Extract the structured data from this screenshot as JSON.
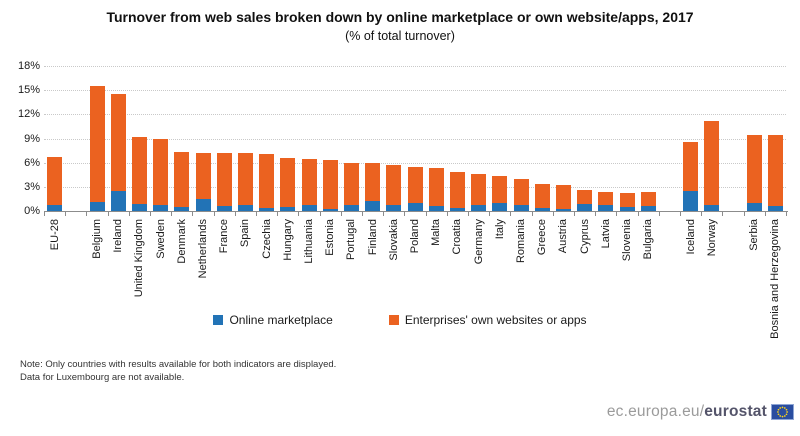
{
  "chart_data": {
    "type": "bar",
    "stacked": true,
    "title": "Turnover from web sales broken down by online marketplace or own website/apps, 2017",
    "subtitle": "(% of total turnover)",
    "ylabel": "",
    "xlabel": "",
    "ylim": [
      0,
      18
    ],
    "ytick_step": 3,
    "ytick_suffix": "%",
    "grid": "horizontal-dotted",
    "legend_position": "bottom-center",
    "series": [
      {
        "key": "marketplace",
        "name": "Online marketplace",
        "color": "#2273B6"
      },
      {
        "key": "own_websites",
        "name": "Enterprises' own websites or apps",
        "color": "#EB6220"
      }
    ],
    "groups": [
      {
        "countries": [
          {
            "name": "EU-28",
            "marketplace": 0.7,
            "own_websites": 6.0
          }
        ]
      },
      {
        "countries": [
          {
            "name": "Belgium",
            "marketplace": 1.1,
            "own_websites": 14.4
          },
          {
            "name": "Ireland",
            "marketplace": 2.5,
            "own_websites": 12.0
          },
          {
            "name": "United Kingdom",
            "marketplace": 0.9,
            "own_websites": 8.3
          },
          {
            "name": "Sweden",
            "marketplace": 0.7,
            "own_websites": 8.2
          },
          {
            "name": "Denmark",
            "marketplace": 0.5,
            "own_websites": 6.8
          },
          {
            "name": "Netherlands",
            "marketplace": 1.5,
            "own_websites": 5.7
          },
          {
            "name": "France",
            "marketplace": 0.6,
            "own_websites": 6.6
          },
          {
            "name": "Spain",
            "marketplace": 0.7,
            "own_websites": 6.5
          },
          {
            "name": "Czechia",
            "marketplace": 0.4,
            "own_websites": 6.7
          },
          {
            "name": "Hungary",
            "marketplace": 0.5,
            "own_websites": 6.1
          },
          {
            "name": "Lithuania",
            "marketplace": 0.8,
            "own_websites": 5.7
          },
          {
            "name": "Estonia",
            "marketplace": 0.3,
            "own_websites": 6.0
          },
          {
            "name": "Portugal",
            "marketplace": 0.7,
            "own_websites": 5.3
          },
          {
            "name": "Finland",
            "marketplace": 1.2,
            "own_websites": 4.7
          },
          {
            "name": "Slovakia",
            "marketplace": 0.7,
            "own_websites": 5.0
          },
          {
            "name": "Poland",
            "marketplace": 1.0,
            "own_websites": 4.5
          },
          {
            "name": "Malta",
            "marketplace": 0.6,
            "own_websites": 4.7
          },
          {
            "name": "Croatia",
            "marketplace": 0.4,
            "own_websites": 4.5
          },
          {
            "name": "Germany",
            "marketplace": 0.7,
            "own_websites": 3.9
          },
          {
            "name": "Italy",
            "marketplace": 1.0,
            "own_websites": 3.4
          },
          {
            "name": "Romania",
            "marketplace": 0.7,
            "own_websites": 3.3
          },
          {
            "name": "Greece",
            "marketplace": 0.4,
            "own_websites": 2.9
          },
          {
            "name": "Austria",
            "marketplace": 0.3,
            "own_websites": 2.9
          },
          {
            "name": "Cyprus",
            "marketplace": 0.9,
            "own_websites": 1.7
          },
          {
            "name": "Latvia",
            "marketplace": 0.7,
            "own_websites": 1.7
          },
          {
            "name": "Slovenia",
            "marketplace": 0.5,
            "own_websites": 1.7
          },
          {
            "name": "Bulgaria",
            "marketplace": 0.6,
            "own_websites": 1.7
          }
        ]
      },
      {
        "countries": [
          {
            "name": "Iceland",
            "marketplace": 2.5,
            "own_websites": 6.1
          },
          {
            "name": "Norway",
            "marketplace": 0.8,
            "own_websites": 10.4
          }
        ]
      },
      {
        "countries": [
          {
            "name": "Serbia",
            "marketplace": 1.0,
            "own_websites": 8.4
          },
          {
            "name": "Bosnia and Herzegovina",
            "marketplace": 0.6,
            "own_websites": 8.8
          }
        ]
      }
    ]
  },
  "notes": {
    "line1": "Note: Only countries with results available for both indicators are displayed.",
    "line2": "Data for Luxembourg are not available."
  },
  "footer": {
    "url_prefix": "ec.europa.eu/",
    "brand": "eurostat"
  }
}
